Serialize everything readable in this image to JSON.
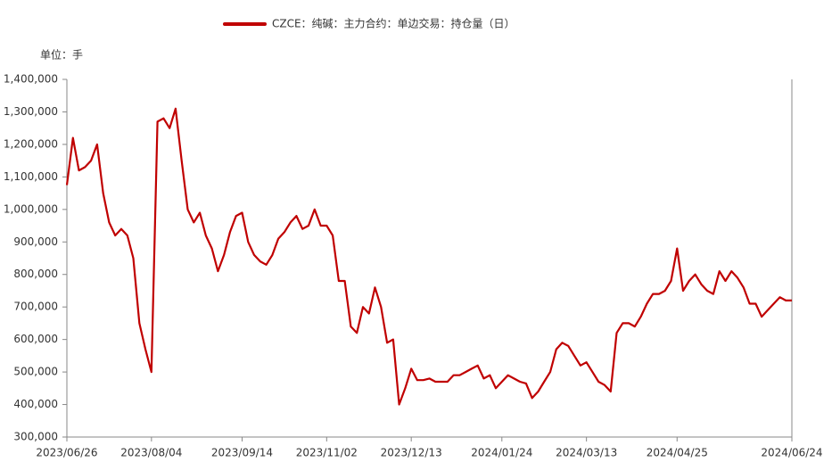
{
  "chart_data": {
    "type": "line",
    "unit_label": "单位：手",
    "categories": [
      "2023/06/26",
      null,
      null,
      null,
      null,
      null,
      null,
      null,
      null,
      null,
      null,
      null,
      null,
      null,
      "2023/08/04",
      null,
      null,
      null,
      null,
      null,
      null,
      null,
      null,
      null,
      null,
      null,
      null,
      null,
      null,
      "2023/09/14",
      null,
      null,
      null,
      null,
      null,
      null,
      null,
      null,
      null,
      null,
      null,
      null,
      null,
      "2023/11/02",
      null,
      null,
      null,
      null,
      null,
      null,
      null,
      null,
      null,
      null,
      null,
      null,
      null,
      "2023/12/13",
      null,
      null,
      null,
      null,
      null,
      null,
      null,
      null,
      null,
      null,
      null,
      null,
      null,
      null,
      "2024/01/24",
      null,
      null,
      null,
      null,
      null,
      null,
      null,
      null,
      null,
      null,
      null,
      null,
      null,
      "2024/03/13",
      null,
      null,
      null,
      null,
      null,
      null,
      null,
      null,
      null,
      null,
      null,
      null,
      null,
      null,
      "2024/04/25",
      null,
      null,
      null,
      null,
      null,
      null,
      null,
      null,
      null,
      null,
      null,
      null,
      null,
      null,
      null,
      null,
      null,
      null,
      "2024/06/24"
    ],
    "series": [
      {
        "name": "CZCE：纯碱：主力合约：单边交易：持仓量（日）",
        "color": "#c00000",
        "values": [
          1075000,
          1220000,
          1120000,
          1130000,
          1150000,
          1200000,
          1050000,
          960000,
          920000,
          940000,
          920000,
          850000,
          650000,
          570000,
          500000,
          1270000,
          1280000,
          1250000,
          1310000,
          1150000,
          1000000,
          960000,
          990000,
          920000,
          880000,
          810000,
          860000,
          930000,
          980000,
          990000,
          900000,
          860000,
          840000,
          830000,
          860000,
          910000,
          930000,
          960000,
          980000,
          940000,
          950000,
          1000000,
          950000,
          950000,
          920000,
          780000,
          780000,
          640000,
          620000,
          700000,
          680000,
          760000,
          700000,
          590000,
          600000,
          400000,
          450000,
          510000,
          475000,
          475000,
          480000,
          470000,
          470000,
          470000,
          490000,
          490000,
          500000,
          510000,
          520000,
          480000,
          490000,
          450000,
          470000,
          490000,
          480000,
          470000,
          465000,
          420000,
          440000,
          470000,
          500000,
          570000,
          590000,
          580000,
          550000,
          520000,
          530000,
          500000,
          470000,
          460000,
          440000,
          620000,
          650000,
          650000,
          640000,
          670000,
          710000,
          740000,
          740000,
          750000,
          780000,
          880000,
          750000,
          780000,
          800000,
          770000,
          750000,
          740000,
          810000,
          780000,
          810000,
          790000,
          760000,
          710000,
          710000,
          670000,
          690000,
          710000,
          730000,
          720000,
          720000
        ]
      }
    ],
    "ylim": [
      300000,
      1400000
    ],
    "yticks": [
      {
        "value": 300000,
        "label": "300,000"
      },
      {
        "value": 400000,
        "label": "400,000"
      },
      {
        "value": 500000,
        "label": "500,000"
      },
      {
        "value": 600000,
        "label": "600,000"
      },
      {
        "value": 700000,
        "label": "700,000"
      },
      {
        "value": 800000,
        "label": "800,000"
      },
      {
        "value": 900000,
        "label": "900,000"
      },
      {
        "value": 1000000,
        "label": "1,000,000"
      },
      {
        "value": 1100000,
        "label": "1,100,000"
      },
      {
        "value": 1200000,
        "label": "1,200,000"
      },
      {
        "value": 1300000,
        "label": "1,300,000"
      },
      {
        "value": 1400000,
        "label": "1,400,000"
      }
    ],
    "grid": false
  }
}
